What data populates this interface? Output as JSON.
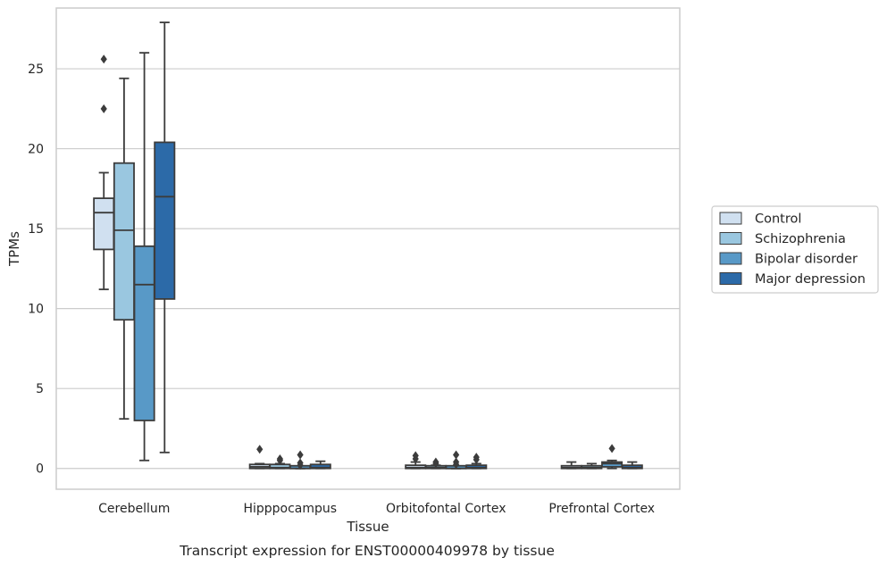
{
  "chart_data": {
    "type": "box",
    "caption": "Transcript expression for ENST00000409978 by tissue",
    "xlabel": "Tissue",
    "ylabel": "TPMs",
    "ylim": [
      -1.3,
      28.8
    ],
    "yticks": [
      0,
      5,
      10,
      15,
      20,
      25
    ],
    "grid": "horizontal",
    "legend_position": "right",
    "categories": [
      "Cerebellum",
      "Hipppocampus",
      "Orbitofontal Cortex",
      "Prefrontal Cortex"
    ],
    "series": [
      {
        "name": "Control",
        "color": "#d0e0f0",
        "boxes": [
          {
            "whislo": 11.2,
            "q1": 13.7,
            "med": 16.0,
            "q3": 16.9,
            "whishi": 18.5,
            "fliers": [
              25.6,
              22.5
            ]
          },
          {
            "whislo": 0.0,
            "q1": 0.0,
            "med": 0.1,
            "q3": 0.25,
            "whishi": 0.3,
            "fliers": [
              1.2
            ]
          },
          {
            "whislo": 0.0,
            "q1": 0.0,
            "med": 0.05,
            "q3": 0.2,
            "whishi": 0.4,
            "fliers": [
              0.8,
              0.6
            ]
          },
          {
            "whislo": 0.0,
            "q1": 0.0,
            "med": 0.05,
            "q3": 0.15,
            "whishi": 0.4,
            "fliers": []
          }
        ]
      },
      {
        "name": "Schizophrenia",
        "color": "#9ac7e0",
        "boxes": [
          {
            "whislo": 3.1,
            "q1": 9.3,
            "med": 14.9,
            "q3": 19.1,
            "whishi": 24.4,
            "fliers": []
          },
          {
            "whislo": 0.0,
            "q1": 0.0,
            "med": 0.05,
            "q3": 0.25,
            "whishi": 0.3,
            "fliers": [
              0.6,
              0.5
            ]
          },
          {
            "whislo": 0.0,
            "q1": 0.0,
            "med": 0.05,
            "q3": 0.1,
            "whishi": 0.2,
            "fliers": [
              0.4,
              0.3
            ]
          },
          {
            "whislo": 0.0,
            "q1": 0.0,
            "med": 0.05,
            "q3": 0.15,
            "whishi": 0.3,
            "fliers": []
          }
        ]
      },
      {
        "name": "Bipolar disorder",
        "color": "#5899c7",
        "boxes": [
          {
            "whislo": 0.5,
            "q1": 3.0,
            "med": 11.5,
            "q3": 13.9,
            "whishi": 26.0,
            "fliers": []
          },
          {
            "whislo": 0.0,
            "q1": 0.0,
            "med": 0.0,
            "q3": 0.0,
            "whishi": 0.0,
            "fliers": [
              0.85,
              0.35,
              0.2
            ]
          },
          {
            "whislo": 0.0,
            "q1": 0.0,
            "med": 0.0,
            "q3": 0.0,
            "whishi": 0.0,
            "fliers": [
              0.85,
              0.4,
              0.25
            ]
          },
          {
            "whislo": 0.0,
            "q1": 0.1,
            "med": 0.3,
            "q3": 0.4,
            "whishi": 0.5,
            "fliers": [
              1.25
            ]
          }
        ]
      },
      {
        "name": "Major depression",
        "color": "#2c6aa8",
        "boxes": [
          {
            "whislo": 1.0,
            "q1": 10.6,
            "med": 17.0,
            "q3": 20.4,
            "whishi": 27.9,
            "fliers": []
          },
          {
            "whislo": 0.0,
            "q1": 0.0,
            "med": 0.05,
            "q3": 0.25,
            "whishi": 0.45,
            "fliers": []
          },
          {
            "whislo": 0.0,
            "q1": 0.0,
            "med": 0.05,
            "q3": 0.2,
            "whishi": 0.3,
            "fliers": [
              0.7,
              0.55
            ]
          },
          {
            "whislo": 0.0,
            "q1": 0.0,
            "med": 0.05,
            "q3": 0.2,
            "whishi": 0.4,
            "fliers": []
          }
        ]
      }
    ]
  }
}
